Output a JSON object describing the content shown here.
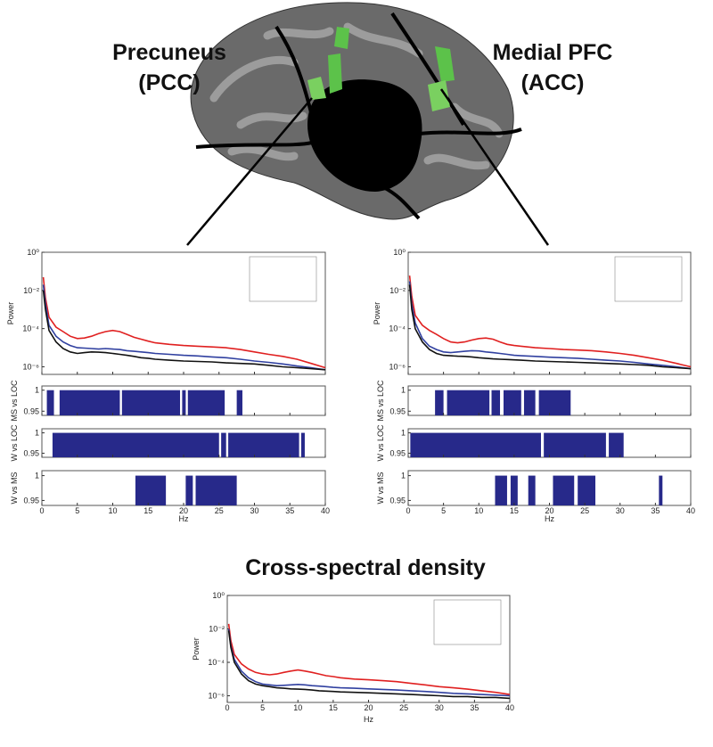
{
  "chart_data": [
    {
      "type": "line",
      "title": "Precuneus (PCC)",
      "ylabel": "Power",
      "xlabel": "Hz",
      "log_y": true,
      "xlim": [
        0,
        40
      ],
      "ylim": [
        4e-07,
        1
      ],
      "xticks": [
        0,
        5,
        10,
        15,
        20,
        25,
        30,
        35,
        40
      ],
      "yticks": [
        {
          "value": 1,
          "label": "10⁰"
        },
        {
          "value": 0.01,
          "label": "10⁻²"
        },
        {
          "value": 0.0001,
          "label": "10⁻⁴"
        },
        {
          "value": 1e-06,
          "label": "10⁻⁶"
        }
      ],
      "x": [
        0.2,
        0.5,
        1,
        2,
        3,
        4,
        5,
        6,
        7,
        8,
        9,
        10,
        11,
        12,
        13,
        14,
        15,
        16,
        18,
        20,
        22,
        24,
        26,
        28,
        30,
        32,
        34,
        36,
        38,
        40
      ],
      "series": [
        {
          "color": "#e02020",
          "values": [
            0.05,
            0.004,
            0.0004,
            0.00012,
            7e-05,
            4e-05,
            3e-05,
            3.2e-05,
            4e-05,
            5.5e-05,
            7e-05,
            8e-05,
            7e-05,
            5e-05,
            3.5e-05,
            2.8e-05,
            2.2e-05,
            1.8e-05,
            1.5e-05,
            1.3e-05,
            1.2e-05,
            1.1e-05,
            1e-05,
            8e-06,
            6e-06,
            4.5e-06,
            3.5e-06,
            2.5e-06,
            1.5e-06,
            9e-07
          ]
        },
        {
          "color": "#3040a0",
          "values": [
            0.02,
            0.002,
            0.00015,
            4e-05,
            2e-05,
            1.3e-05,
            1e-05,
            9.5e-06,
            9e-06,
            8.5e-06,
            9e-06,
            8.5e-06,
            8e-06,
            7e-06,
            6.5e-06,
            6e-06,
            5.5e-06,
            5e-06,
            4.5e-06,
            4e-06,
            3.7e-06,
            3.3e-06,
            3e-06,
            2.5e-06,
            2e-06,
            1.7e-06,
            1.4e-06,
            1.1e-06,
            9e-07,
            7e-07
          ]
        },
        {
          "color": "#111111",
          "values": [
            0.01,
            0.001,
            8e-05,
            2e-05,
            9e-06,
            6e-06,
            5e-06,
            5.5e-06,
            6e-06,
            5.8e-06,
            5.5e-06,
            5e-06,
            4.5e-06,
            4e-06,
            3.5e-06,
            3e-06,
            2.8e-06,
            2.5e-06,
            2.2e-06,
            2e-06,
            1.9e-06,
            1.8e-06,
            1.6e-06,
            1.5e-06,
            1.4e-06,
            1.2e-06,
            1e-06,
            9e-07,
            8e-07,
            7e-07
          ]
        }
      ],
      "significance_ylim": [
        0.94,
        1.01
      ],
      "significance_yticks": [
        0.95,
        1
      ],
      "significance": [
        {
          "label": "MS vs LOC",
          "intervals": [
            [
              0.7,
              1.7
            ],
            [
              2.5,
              11
            ],
            [
              11.3,
              19.5
            ],
            [
              19.8,
              20.3
            ],
            [
              20.6,
              25.8
            ],
            [
              27.5,
              28.3
            ]
          ]
        },
        {
          "label": "W vs LOC",
          "intervals": [
            [
              1.5,
              25
            ],
            [
              25.3,
              26
            ],
            [
              26.3,
              36.3
            ],
            [
              36.6,
              37.1
            ]
          ]
        },
        {
          "label": "W vs MS",
          "intervals": [
            [
              13.2,
              17.5
            ],
            [
              20.3,
              21.3
            ],
            [
              21.7,
              27.5
            ]
          ]
        }
      ]
    },
    {
      "type": "line",
      "title": "Medial PFC (ACC)",
      "ylabel": "Power",
      "xlabel": "Hz",
      "log_y": true,
      "xlim": [
        0,
        40
      ],
      "ylim": [
        4e-07,
        1
      ],
      "xticks": [
        0,
        5,
        10,
        15,
        20,
        25,
        30,
        35,
        40
      ],
      "yticks": [
        {
          "value": 1,
          "label": "10⁰"
        },
        {
          "value": 0.01,
          "label": "10⁻²"
        },
        {
          "value": 0.0001,
          "label": "10⁻⁴"
        },
        {
          "value": 1e-06,
          "label": "10⁻⁶"
        }
      ],
      "x": [
        0.2,
        0.5,
        1,
        2,
        3,
        4,
        5,
        6,
        7,
        8,
        9,
        10,
        11,
        12,
        13,
        14,
        15,
        16,
        18,
        20,
        22,
        24,
        26,
        28,
        30,
        32,
        34,
        36,
        38,
        40
      ],
      "series": [
        {
          "color": "#e02020",
          "values": [
            0.06,
            0.005,
            0.0005,
            0.00015,
            8e-05,
            5e-05,
            3e-05,
            2e-05,
            1.8e-05,
            2e-05,
            2.5e-05,
            3e-05,
            3.2e-05,
            2.8e-05,
            2e-05,
            1.5e-05,
            1.3e-05,
            1.2e-05,
            1e-05,
            9e-06,
            8e-06,
            7.5e-06,
            7e-06,
            6e-06,
            5e-06,
            4e-06,
            3e-06,
            2.2e-06,
            1.5e-06,
            1e-06
          ]
        },
        {
          "color": "#3040a0",
          "values": [
            0.03,
            0.002,
            0.0002,
            3e-05,
            1.2e-05,
            8e-06,
            6e-06,
            5.5e-06,
            6e-06,
            6.5e-06,
            7e-06,
            6.8e-06,
            6e-06,
            5.5e-06,
            5e-06,
            4.5e-06,
            4e-06,
            3.8e-06,
            3.5e-06,
            3.2e-06,
            3e-06,
            2.8e-06,
            2.5e-06,
            2.2e-06,
            2e-06,
            1.7e-06,
            1.4e-06,
            1.2e-06,
            1e-06,
            8e-07
          ]
        },
        {
          "color": "#111111",
          "values": [
            0.02,
            0.001,
            0.0001,
            2e-05,
            8e-06,
            5e-06,
            4e-06,
            3.8e-06,
            3.6e-06,
            3.5e-06,
            3.3e-06,
            3e-06,
            2.8e-06,
            2.6e-06,
            2.5e-06,
            2.4e-06,
            2.3e-06,
            2.2e-06,
            2e-06,
            1.9e-06,
            1.8e-06,
            1.7e-06,
            1.6e-06,
            1.5e-06,
            1.4e-06,
            1.3e-06,
            1.2e-06,
            1e-06,
            9e-07,
            8e-07
          ]
        }
      ],
      "significance_ylim": [
        0.94,
        1.01
      ],
      "significance_yticks": [
        0.95,
        1
      ],
      "significance": [
        {
          "label": "MS vs LOC",
          "intervals": [
            [
              3.8,
              5
            ],
            [
              5.5,
              11.5
            ],
            [
              11.8,
              13
            ],
            [
              13.5,
              16
            ],
            [
              16.4,
              18
            ],
            [
              18.5,
              23
            ]
          ]
        },
        {
          "label": "W vs LOC",
          "intervals": [
            [
              0.3,
              18.8
            ],
            [
              19.2,
              28
            ],
            [
              28.4,
              30.5
            ]
          ]
        },
        {
          "label": "W vs MS",
          "intervals": [
            [
              12.3,
              14
            ],
            [
              14.5,
              15.5
            ],
            [
              17,
              18
            ],
            [
              20.5,
              23.5
            ],
            [
              24,
              26.5
            ],
            [
              35.5,
              36
            ]
          ]
        }
      ]
    },
    {
      "type": "line",
      "title": "Cross-spectral density",
      "ylabel": "Power",
      "xlabel": "Hz",
      "log_y": true,
      "xlim": [
        0,
        40
      ],
      "ylim": [
        4e-07,
        1
      ],
      "xticks": [
        0,
        5,
        10,
        15,
        20,
        25,
        30,
        35,
        40
      ],
      "yticks": [
        {
          "value": 1,
          "label": "10⁰"
        },
        {
          "value": 0.01,
          "label": "10⁻²"
        },
        {
          "value": 0.0001,
          "label": "10⁻⁴"
        },
        {
          "value": 1e-06,
          "label": "10⁻⁶"
        }
      ],
      "x": [
        0.2,
        0.5,
        1,
        2,
        3,
        4,
        5,
        6,
        7,
        8,
        9,
        10,
        11,
        12,
        13,
        14,
        15,
        16,
        18,
        20,
        22,
        24,
        26,
        28,
        30,
        32,
        34,
        36,
        38,
        40
      ],
      "series": [
        {
          "color": "#e02020",
          "values": [
            0.02,
            0.002,
            0.0003,
            8e-05,
            4e-05,
            2.5e-05,
            2e-05,
            1.8e-05,
            2e-05,
            2.5e-05,
            3e-05,
            3.5e-05,
            3e-05,
            2.5e-05,
            2e-05,
            1.6e-05,
            1.4e-05,
            1.2e-05,
            1e-05,
            9e-06,
            8e-06,
            7e-06,
            5.5e-06,
            4.5e-06,
            3.5e-06,
            3e-06,
            2.5e-06,
            2e-06,
            1.6e-06,
            1.2e-06
          ]
        },
        {
          "color": "#3040a0",
          "values": [
            0.01,
            0.001,
            0.00015,
            3e-05,
            1.2e-05,
            7e-06,
            5e-06,
            4.5e-06,
            4e-06,
            4.2e-06,
            4.5e-06,
            4.8e-06,
            4.5e-06,
            4e-06,
            3.8e-06,
            3.5e-06,
            3.2e-06,
            3e-06,
            2.8e-06,
            2.6e-06,
            2.4e-06,
            2.2e-06,
            2e-06,
            1.8e-06,
            1.6e-06,
            1.4e-06,
            1.3e-06,
            1.2e-06,
            1.1e-06,
            1e-06
          ]
        },
        {
          "color": "#111111",
          "values": [
            0.008,
            0.0008,
            0.0001,
            2e-05,
            8e-06,
            5e-06,
            4e-06,
            3.5e-06,
            3e-06,
            2.8e-06,
            2.6e-06,
            2.5e-06,
            2.4e-06,
            2.2e-06,
            2e-06,
            1.9e-06,
            1.8e-06,
            1.7e-06,
            1.6e-06,
            1.5e-06,
            1.4e-06,
            1.3e-06,
            1.2e-06,
            1.1e-06,
            1e-06,
            9e-07,
            9e-07,
            8e-07,
            8e-07,
            7e-07
          ]
        }
      ]
    }
  ]
}
